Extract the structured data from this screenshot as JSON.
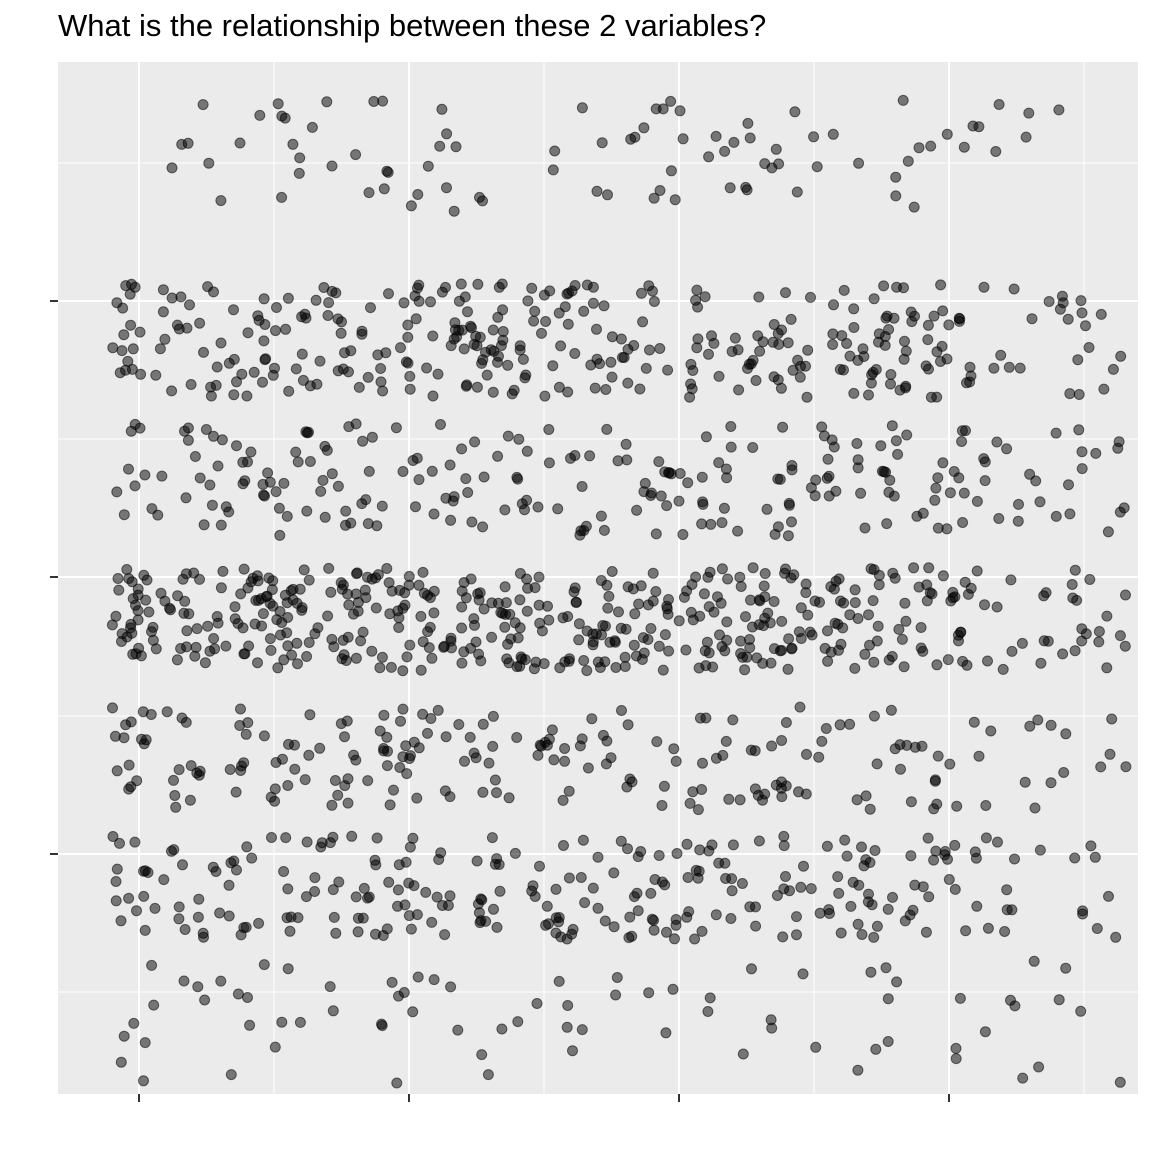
{
  "chart_data": {
    "type": "scatter",
    "title": "What is the relationship between these 2 variables?",
    "xlabel": "",
    "ylabel": "",
    "x_ticks_labeled": false,
    "y_ticks_labeled": false,
    "xlim": [
      0,
      1
    ],
    "ylim": [
      0,
      1
    ],
    "grid": true,
    "legend": "none",
    "point_color": "#000000",
    "point_opacity": 0.5,
    "panel_background": "#EBEBEB",
    "gridline_color": "#FFFFFF",
    "n_points_approx": 2500,
    "description_of_bands": [
      {
        "y_center": 0.91,
        "y_halfwidth": 0.055,
        "density": 0.25,
        "x_range": [
          0.1,
          0.95
        ]
      },
      {
        "y_center": 0.73,
        "y_halfwidth": 0.055,
        "density": 1.0,
        "x_range": [
          0.05,
          0.99
        ]
      },
      {
        "y_center": 0.595,
        "y_halfwidth": 0.055,
        "density": 0.65,
        "x_range": [
          0.05,
          0.99
        ]
      },
      {
        "y_center": 0.46,
        "y_halfwidth": 0.05,
        "density": 1.35,
        "x_range": [
          0.05,
          0.99
        ]
      },
      {
        "y_center": 0.325,
        "y_halfwidth": 0.05,
        "density": 0.6,
        "x_range": [
          0.05,
          0.99
        ]
      },
      {
        "y_center": 0.2,
        "y_halfwidth": 0.05,
        "density": 0.75,
        "x_range": [
          0.05,
          0.99
        ]
      },
      {
        "y_center": 0.07,
        "y_halfwidth": 0.06,
        "density": 0.22,
        "x_range": [
          0.05,
          0.99
        ]
      }
    ]
  }
}
